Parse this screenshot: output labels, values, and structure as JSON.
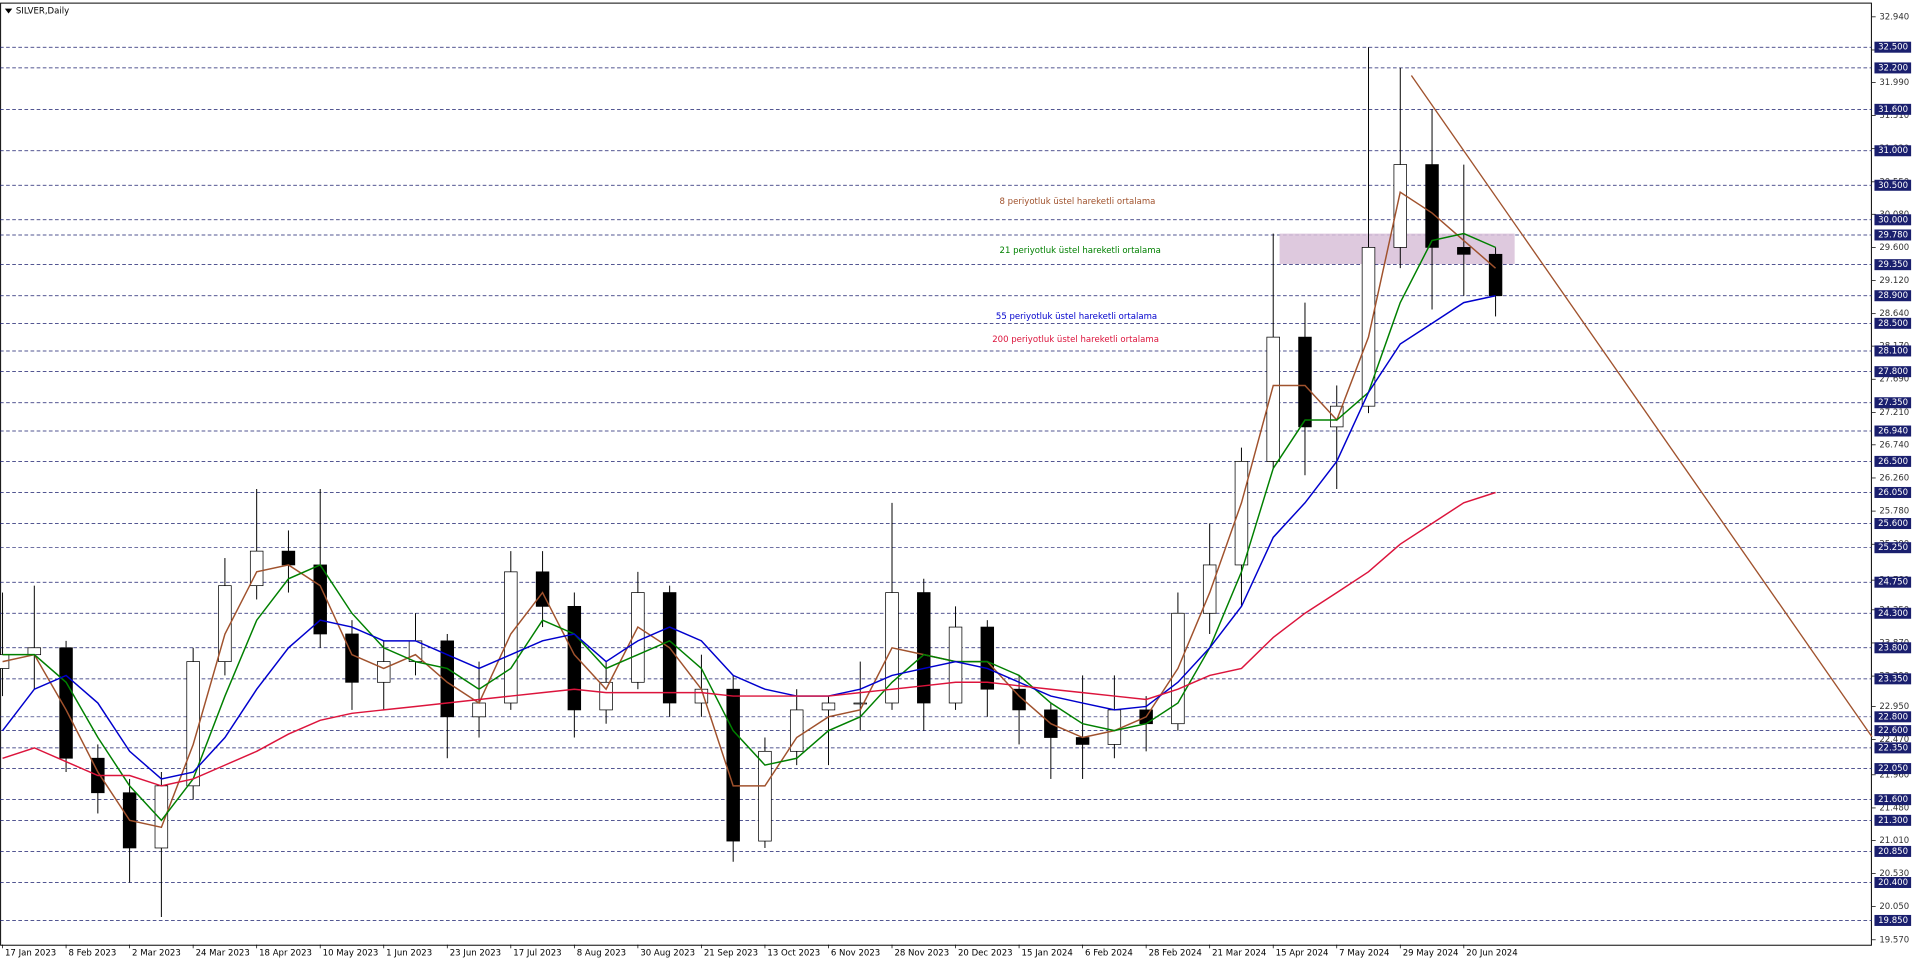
{
  "chart_data": {
    "type": "candlestick",
    "title": "SILVER,Daily",
    "categories": [
      "17 Jan 2023",
      null,
      "8 Feb 2023",
      null,
      "2 Mar 2023",
      null,
      "24 Mar 2023",
      null,
      "18 Apr 2023",
      null,
      "10 May 2023",
      null,
      "1 Jun 2023",
      null,
      "23 Jun 2023",
      null,
      "17 Jul 2023",
      null,
      "8 Aug 2023",
      null,
      "30 Aug 2023",
      null,
      "21 Sep 2023",
      null,
      "13 Oct 2023",
      null,
      "6 Nov 2023",
      null,
      "28 Nov 2023",
      null,
      "20 Dec 2023",
      null,
      "15 Jan 2024",
      null,
      "6 Feb 2024",
      null,
      "28 Feb 2024",
      null,
      "21 Mar 2024",
      null,
      "15 Apr 2024",
      null,
      "7 May 2024",
      null,
      "29 May 2024",
      null,
      "20 Jun 2024",
      null
    ],
    "open": [
      23.5,
      23.7,
      23.8,
      22.2,
      21.7,
      20.9,
      21.8,
      23.6,
      24.7,
      25.2,
      25.0,
      24.0,
      23.3,
      23.6,
      23.9,
      22.8,
      23.0,
      24.9,
      24.4,
      22.9,
      23.3,
      24.6,
      23.0,
      23.2,
      21.0,
      22.3,
      22.9,
      23.0,
      23.0,
      24.6,
      23.0,
      24.1,
      23.2,
      22.9,
      22.5,
      22.4,
      22.9,
      22.7,
      24.3,
      25.0,
      26.5,
      28.3,
      27.0,
      27.3,
      29.6,
      30.8,
      29.6,
      29.5
    ],
    "high": [
      24.6,
      24.7,
      23.9,
      22.4,
      21.9,
      22.0,
      23.8,
      25.1,
      26.1,
      25.5,
      26.1,
      24.2,
      23.9,
      24.3,
      24.0,
      23.6,
      25.2,
      25.2,
      24.6,
      23.6,
      24.9,
      24.7,
      23.7,
      23.4,
      22.5,
      23.2,
      23.1,
      23.6,
      25.9,
      24.8,
      24.4,
      24.2,
      23.4,
      23.0,
      23.4,
      23.4,
      23.1,
      24.6,
      25.6,
      26.7,
      29.8,
      28.8,
      27.6,
      32.5,
      32.2,
      31.6,
      30.8,
      29.6
    ],
    "low": [
      23.1,
      23.2,
      22.0,
      21.4,
      20.4,
      19.9,
      21.6,
      23.4,
      24.5,
      24.6,
      23.8,
      22.9,
      22.9,
      23.4,
      22.2,
      22.5,
      22.9,
      24.1,
      22.5,
      22.7,
      23.2,
      22.8,
      22.8,
      20.7,
      20.9,
      22.1,
      22.1,
      22.6,
      22.9,
      22.6,
      22.9,
      22.8,
      22.4,
      21.9,
      21.9,
      22.2,
      22.3,
      22.6,
      24.0,
      24.4,
      26.4,
      26.3,
      26.1,
      27.2,
      29.3,
      28.7,
      28.9,
      28.6
    ],
    "close": [
      23.7,
      23.8,
      22.2,
      21.7,
      20.9,
      21.8,
      23.6,
      24.7,
      25.2,
      25.0,
      24.0,
      23.3,
      23.6,
      23.9,
      22.8,
      23.0,
      24.9,
      24.4,
      22.9,
      23.3,
      24.6,
      23.0,
      23.2,
      21.0,
      22.3,
      22.9,
      23.0,
      23.0,
      24.6,
      23.0,
      24.1,
      23.2,
      22.9,
      22.5,
      22.4,
      22.9,
      22.7,
      24.3,
      25.0,
      26.5,
      28.3,
      27.0,
      27.3,
      29.6,
      30.8,
      29.6,
      29.5,
      28.9
    ],
    "lines": [
      {
        "name": "8 periyotluk üstel hareketli ortalama",
        "color": "#a0522d",
        "values": [
          23.6,
          23.7,
          22.9,
          22.0,
          21.3,
          21.2,
          22.4,
          24.0,
          24.9,
          25.0,
          24.7,
          23.7,
          23.5,
          23.7,
          23.3,
          23.0,
          24.0,
          24.6,
          23.7,
          23.2,
          24.1,
          23.8,
          23.2,
          21.8,
          21.8,
          22.5,
          22.8,
          22.9,
          23.8,
          23.7,
          23.6,
          23.6,
          23.1,
          22.7,
          22.5,
          22.6,
          22.8,
          23.5,
          24.6,
          25.9,
          27.6,
          27.6,
          27.1,
          28.3,
          30.4,
          30.1,
          29.7,
          29.3
        ]
      },
      {
        "name": "21 periyotluk üstel hareketli ortalama",
        "color": "#008000",
        "values": [
          23.7,
          23.7,
          23.3,
          22.5,
          21.8,
          21.3,
          21.9,
          23.1,
          24.2,
          24.8,
          25.0,
          24.3,
          23.8,
          23.6,
          23.5,
          23.2,
          23.5,
          24.2,
          24.0,
          23.5,
          23.7,
          23.9,
          23.5,
          22.6,
          22.1,
          22.2,
          22.6,
          22.8,
          23.3,
          23.7,
          23.6,
          23.6,
          23.4,
          23.0,
          22.7,
          22.6,
          22.7,
          23.0,
          23.8,
          24.9,
          26.4,
          27.1,
          27.1,
          27.5,
          28.8,
          29.7,
          29.8,
          29.6
        ]
      },
      {
        "name": "55 periyotluk üstel hareketli ortalama",
        "color": "#0000cd",
        "values": [
          22.6,
          23.2,
          23.4,
          23.0,
          22.3,
          21.9,
          22.0,
          22.5,
          23.2,
          23.8,
          24.2,
          24.1,
          23.9,
          23.9,
          23.7,
          23.5,
          23.7,
          23.9,
          24.0,
          23.6,
          23.9,
          24.1,
          23.9,
          23.4,
          23.2,
          23.1,
          23.1,
          23.2,
          23.4,
          23.5,
          23.6,
          23.5,
          23.3,
          23.1,
          23.0,
          22.9,
          22.95,
          23.3,
          23.8,
          24.4,
          25.4,
          25.9,
          26.5,
          27.5,
          28.2,
          28.5,
          28.8,
          28.9
        ]
      },
      {
        "name": "200 periyotluk üstel hareketli ortalama",
        "color": "#dc143c",
        "values": [
          22.2,
          22.35,
          22.15,
          21.95,
          21.95,
          21.8,
          21.9,
          22.1,
          22.3,
          22.55,
          22.75,
          22.85,
          22.9,
          22.95,
          23.0,
          23.05,
          23.1,
          23.15,
          23.2,
          23.15,
          23.15,
          23.15,
          23.15,
          23.1,
          23.1,
          23.1,
          23.1,
          23.15,
          23.2,
          23.25,
          23.3,
          23.3,
          23.25,
          23.2,
          23.15,
          23.1,
          23.05,
          23.2,
          23.4,
          23.5,
          23.95,
          24.3,
          24.6,
          24.9,
          25.3,
          25.6,
          25.9,
          26.05
        ]
      }
    ],
    "xlim": [
      -0.08,
      58.85
    ],
    "ylim": [
      19.5,
      33.13
    ],
    "yticks": [
      {
        "value": 32.94,
        "label": "32.940"
      },
      {
        "value": 32.46,
        "label": "32.460"
      },
      {
        "value": 31.99,
        "label": "31.990"
      },
      {
        "value": 31.51,
        "label": "31.510"
      },
      {
        "value": 31.03,
        "label": "31.030"
      },
      {
        "value": 30.55,
        "label": "30.550"
      },
      {
        "value": 30.08,
        "label": "30.080"
      },
      {
        "value": 29.6,
        "label": "29.600"
      },
      {
        "value": 29.12,
        "label": "29.120"
      },
      {
        "value": 28.64,
        "label": "28.640"
      },
      {
        "value": 28.17,
        "label": "28.170"
      },
      {
        "value": 27.69,
        "label": "27.690"
      },
      {
        "value": 27.21,
        "label": "27.210"
      },
      {
        "value": 26.74,
        "label": "26.740"
      },
      {
        "value": 26.26,
        "label": "26.260"
      },
      {
        "value": 25.78,
        "label": "25.780"
      },
      {
        "value": 25.3,
        "label": "25.300"
      },
      {
        "value": 24.78,
        "label": "24.780"
      },
      {
        "value": 24.35,
        "label": "24.350"
      },
      {
        "value": 23.87,
        "label": "23.870"
      },
      {
        "value": 23.39,
        "label": "23.390"
      },
      {
        "value": 22.95,
        "label": "22.950"
      },
      {
        "value": 22.47,
        "label": "22.470"
      },
      {
        "value": 21.96,
        "label": "21.960"
      },
      {
        "value": 21.48,
        "label": "21.480"
      },
      {
        "value": 21.01,
        "label": "21.010"
      },
      {
        "value": 20.53,
        "label": "20.530"
      },
      {
        "value": 20.05,
        "label": "20.050"
      },
      {
        "value": 19.57,
        "label": "19.570"
      }
    ],
    "levels": [
      {
        "value": 32.5,
        "label": "32.500"
      },
      {
        "value": 32.2,
        "label": "32.200"
      },
      {
        "value": 31.6,
        "label": "31.600"
      },
      {
        "value": 31.0,
        "label": "31.000"
      },
      {
        "value": 30.5,
        "label": "30.500"
      },
      {
        "value": 30.0,
        "label": "30.000"
      },
      {
        "value": 29.78,
        "label": "29.780"
      },
      {
        "value": 29.35,
        "label": "29.350"
      },
      {
        "value": 28.9,
        "label": "28.900"
      },
      {
        "value": 28.5,
        "label": "28.500"
      },
      {
        "value": 28.1,
        "label": "28.100"
      },
      {
        "value": 27.8,
        "label": "27.800"
      },
      {
        "value": 27.35,
        "label": "27.350"
      },
      {
        "value": 26.94,
        "label": "26.940"
      },
      {
        "value": 26.5,
        "label": "26.500"
      },
      {
        "value": 26.05,
        "label": "26.050"
      },
      {
        "value": 25.6,
        "label": "25.600"
      },
      {
        "value": 25.25,
        "label": "25.250"
      },
      {
        "value": 24.75,
        "label": "24.750"
      },
      {
        "value": 24.3,
        "label": "24.300"
      },
      {
        "value": 23.8,
        "label": "23.800"
      },
      {
        "value": 23.35,
        "label": "23.350"
      },
      {
        "value": 22.8,
        "label": "22.800"
      },
      {
        "value": 22.6,
        "label": "22.600"
      },
      {
        "value": 22.35,
        "label": "22.350"
      },
      {
        "value": 22.05,
        "label": "22.050"
      },
      {
        "value": 21.6,
        "label": "21.600"
      },
      {
        "value": 21.3,
        "label": "21.300"
      },
      {
        "value": 20.85,
        "label": "20.850"
      },
      {
        "value": 20.4,
        "label": "20.400"
      },
      {
        "value": 19.85,
        "label": "19.850"
      }
    ],
    "level_color": "#1a1f6e",
    "trendline": {
      "x": [
        44.35,
        58.85
      ],
      "y": [
        32.09,
        22.51
      ],
      "color": "#a0522d"
    },
    "zone": {
      "x": [
        40.2,
        47.6
      ],
      "y": [
        29.36,
        29.8
      ],
      "color": "#d8bfd8"
    }
  }
}
